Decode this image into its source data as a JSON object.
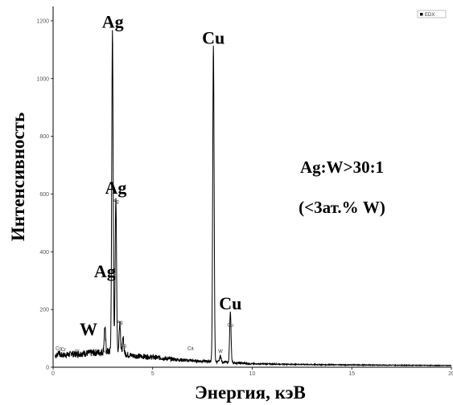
{
  "chart_data": {
    "type": "line",
    "xlabel": "Энергия, кэВ",
    "ylabel": "Интенсивность",
    "xlim": [
      0,
      20
    ],
    "ylim": [
      0,
      1250
    ],
    "x_ticks": [
      0,
      5,
      10,
      15,
      20
    ],
    "y_ticks": [
      0,
      200,
      400,
      600,
      800,
      1000,
      1200
    ],
    "grid": false,
    "legend": {
      "entries": [
        "EDX"
      ],
      "placement": "top-right"
    },
    "series": [
      {
        "name": "EDX",
        "color": "#000000",
        "peaks": [
          {
            "x": 0.28,
            "y": 55
          },
          {
            "x": 0.52,
            "y": 40
          },
          {
            "x": 0.93,
            "y": 50
          },
          {
            "x": 1.2,
            "y": 35
          },
          {
            "x": 1.78,
            "y": 45
          },
          {
            "x": 2.6,
            "y": 140
          },
          {
            "x": 2.98,
            "y": 1165
          },
          {
            "x": 3.15,
            "y": 590
          },
          {
            "x": 3.35,
            "y": 160
          },
          {
            "x": 3.52,
            "y": 100
          },
          {
            "x": 6.9,
            "y": 25
          },
          {
            "x": 8.05,
            "y": 1110
          },
          {
            "x": 8.4,
            "y": 40
          },
          {
            "x": 8.9,
            "y": 190
          }
        ],
        "background": [
          {
            "x": 0.1,
            "y": 40
          },
          {
            "x": 1.0,
            "y": 45
          },
          {
            "x": 2.0,
            "y": 50
          },
          {
            "x": 3.0,
            "y": 55
          },
          {
            "x": 4.0,
            "y": 40
          },
          {
            "x": 5.0,
            "y": 35
          },
          {
            "x": 6.0,
            "y": 28
          },
          {
            "x": 7.0,
            "y": 22
          },
          {
            "x": 8.0,
            "y": 20
          },
          {
            "x": 9.0,
            "y": 16
          },
          {
            "x": 10.0,
            "y": 12
          },
          {
            "x": 12.0,
            "y": 10
          },
          {
            "x": 15.0,
            "y": 8
          },
          {
            "x": 20.0,
            "y": 6
          }
        ]
      }
    ],
    "annotations": {
      "peak_labels": [
        {
          "text": "Ag",
          "x": 3.0,
          "y": 1165
        },
        {
          "text": "Cu",
          "x": 8.05,
          "y": 1110
        },
        {
          "text": "Ag",
          "x": 3.15,
          "y": 590
        },
        {
          "text": "Ag",
          "x": 2.6,
          "y": 300
        },
        {
          "text": "Cu",
          "x": 8.9,
          "y": 190
        },
        {
          "text": "W",
          "x": 1.78,
          "y": 100
        }
      ],
      "small_labels": [
        {
          "text": "Ag",
          "x": 3.15,
          "y": 570
        },
        {
          "text": "Ag",
          "x": 3.35,
          "y": 150
        },
        {
          "text": "Ag",
          "x": 3.52,
          "y": 70
        },
        {
          "text": "Ag",
          "x": 2.6,
          "y": 50
        },
        {
          "text": "Cu",
          "x": 8.9,
          "y": 140
        },
        {
          "text": "Ca",
          "x": 6.9,
          "y": 60
        },
        {
          "text": "W",
          "x": 8.4,
          "y": 50
        },
        {
          "text": "Co",
          "x": 0.28,
          "y": 60
        },
        {
          "text": "Cr",
          "x": 0.52,
          "y": 55
        },
        {
          "text": "W",
          "x": 1.2,
          "y": 50
        }
      ],
      "ratio_text": [
        "Ag:W>30:1",
        "(<3ат.% W)"
      ]
    }
  }
}
